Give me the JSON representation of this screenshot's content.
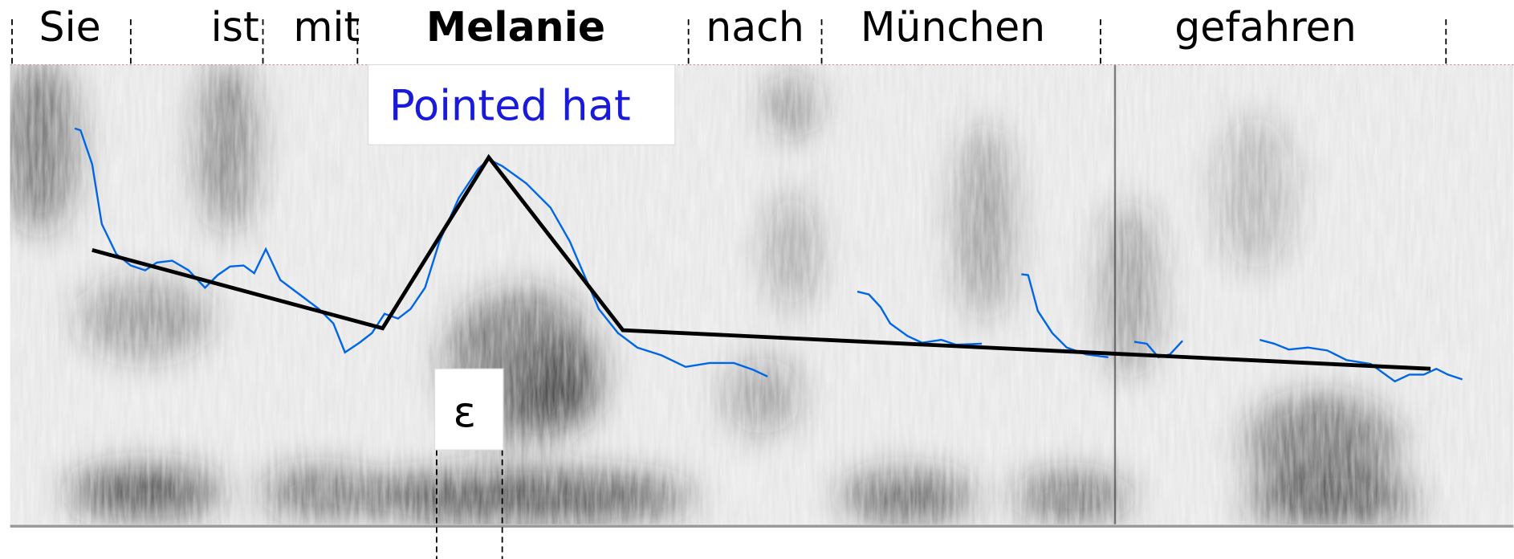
{
  "words": [
    "Sie",
    "ist",
    "mit",
    "Melanie",
    "nach",
    "München",
    "gefahren"
  ],
  "annotations": {
    "accent_label": "Pointed hat",
    "segment_label": "ε"
  }
}
